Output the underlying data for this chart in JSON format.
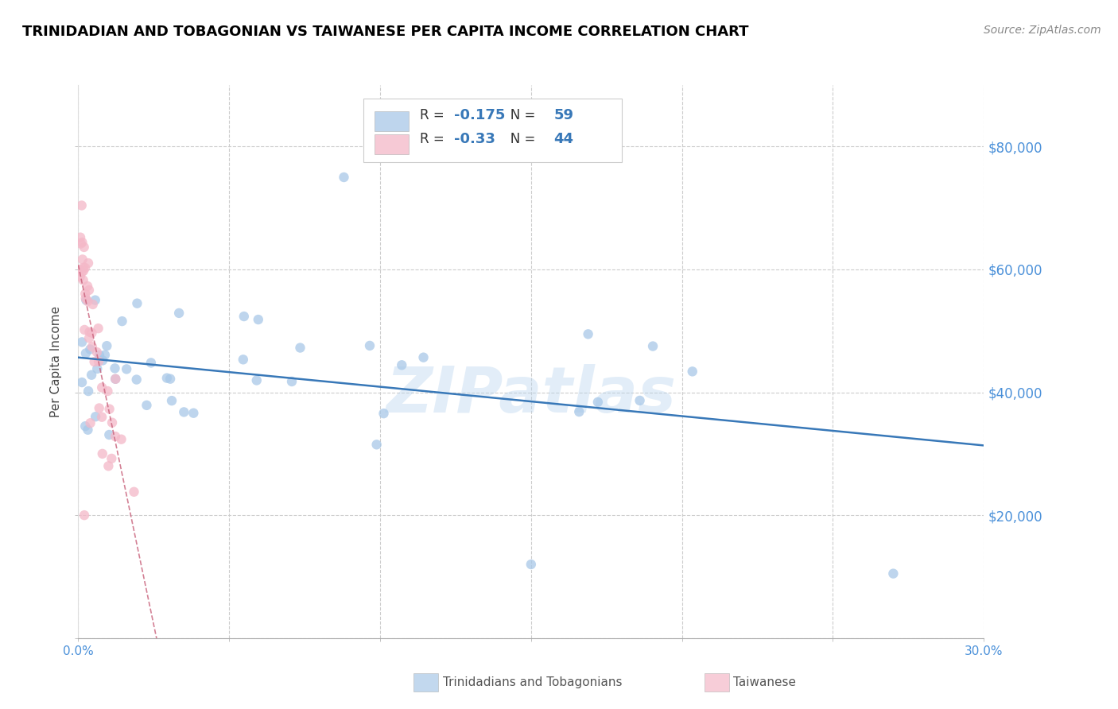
{
  "title": "TRINIDADIAN AND TOBAGONIAN VS TAIWANESE PER CAPITA INCOME CORRELATION CHART",
  "source": "Source: ZipAtlas.com",
  "ylabel": "Per Capita Income",
  "xlim": [
    0.0,
    0.3
  ],
  "ylim": [
    0,
    90000
  ],
  "blue_color": "#a8c8e8",
  "pink_color": "#f4b8c8",
  "blue_line_color": "#3878b8",
  "pink_line_color": "#c8607a",
  "r_blue": -0.175,
  "n_blue": 59,
  "r_pink": -0.33,
  "n_pink": 44,
  "legend_label_blue": "Trinidadians and Tobagonians",
  "legend_label_pink": "Taiwanese",
  "watermark": "ZIPatlas",
  "ytick_color": "#4a90d9",
  "xtick_color": "#4a90d9",
  "grid_color": "#cccccc",
  "title_fontsize": 13,
  "source_fontsize": 10
}
